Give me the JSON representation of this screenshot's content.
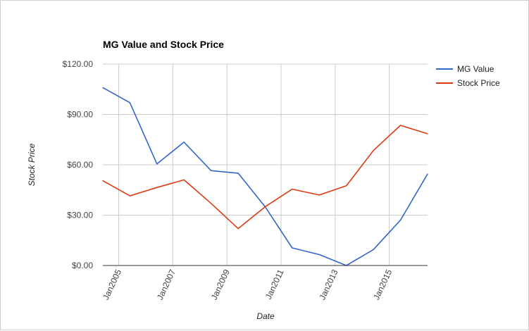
{
  "chart_data": {
    "type": "line",
    "title": "MG Value and Stock Price",
    "xlabel": "Date",
    "ylabel": "Stock Price",
    "x": [
      "2004-06",
      "2005-06",
      "2006-06",
      "2007-06",
      "2008-06",
      "2009-06",
      "2010-06",
      "2011-06",
      "2012-06",
      "2013-06",
      "2014-06",
      "2015-06",
      "2016-06"
    ],
    "x_ticks": [
      {
        "label": "Jan2005",
        "date": "2005-01"
      },
      {
        "label": "Jan2007",
        "date": "2007-01"
      },
      {
        "label": "Jan2009",
        "date": "2009-01"
      },
      {
        "label": "Jan2011",
        "date": "2011-01"
      },
      {
        "label": "Jan2013",
        "date": "2013-01"
      },
      {
        "label": "Jan2015",
        "date": "2015-01"
      }
    ],
    "y_ticks": [
      "$0.00",
      "$30.00",
      "$60.00",
      "$90.00",
      "$120.00"
    ],
    "y_tick_values": [
      0,
      30,
      60,
      90,
      120
    ],
    "ylim": [
      0,
      120
    ],
    "grid": true,
    "legend_position": "right",
    "series": [
      {
        "name": "MG Value",
        "color": "#3366cc",
        "values": [
          106,
          97,
          60.5,
          73.5,
          56.5,
          55,
          35,
          10.5,
          6.5,
          0,
          9.5,
          27,
          54.5
        ]
      },
      {
        "name": "Stock Price",
        "color": "#dc3912",
        "values": [
          50.5,
          41.5,
          46.5,
          51,
          37,
          22,
          35,
          45.5,
          42,
          47.5,
          68.5,
          83.5,
          78.5
        ]
      }
    ]
  }
}
